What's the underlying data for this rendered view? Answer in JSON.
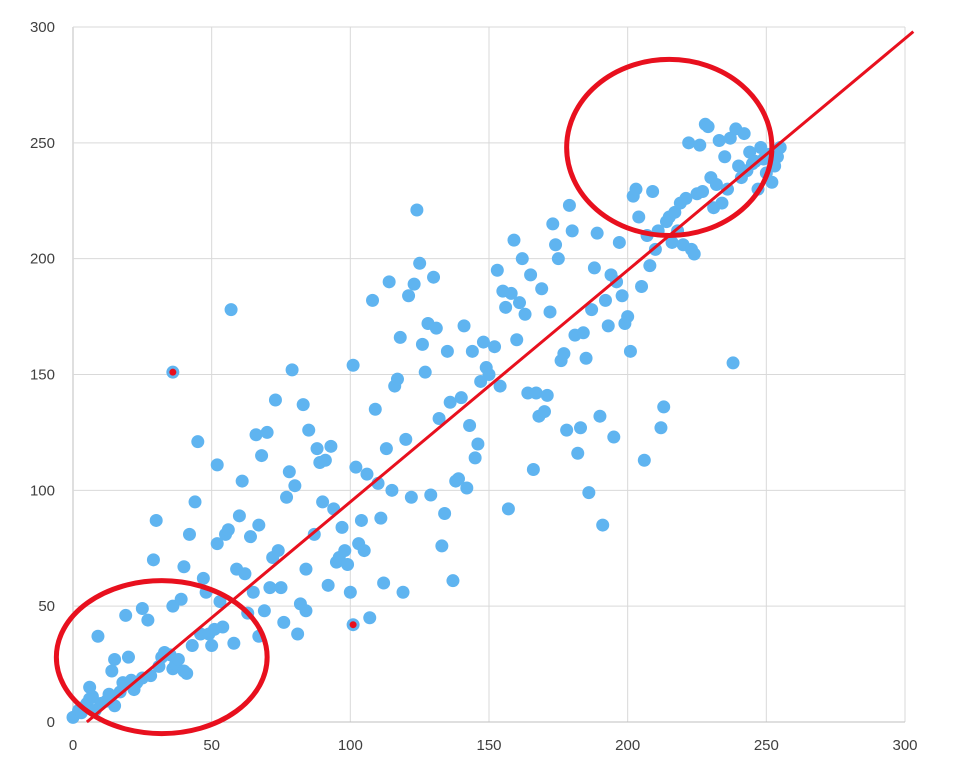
{
  "chart_data": {
    "type": "scatter",
    "title": "",
    "xlabel": "",
    "ylabel": "",
    "xlim": [
      0,
      300
    ],
    "ylim": [
      0,
      300
    ],
    "grid": true,
    "x_ticks": [
      "0",
      "50",
      "100",
      "150",
      "200",
      "250",
      "300"
    ],
    "y_ticks": [
      "0",
      "50",
      "100",
      "150",
      "200",
      "250",
      "300"
    ],
    "colors": {
      "points": "#5fb4f0",
      "highlight": "#e8101e",
      "fit_line": "#e8101e"
    },
    "fit_line": {
      "from": [
        5,
        0
      ],
      "to": [
        303,
        298
      ]
    },
    "annotations": [
      {
        "type": "ellipse",
        "center": [
          215,
          248
        ],
        "rx": 37,
        "ry": 38
      },
      {
        "type": "ellipse",
        "center": [
          32,
          28
        ],
        "rx": 38,
        "ry": 33
      }
    ],
    "highlighted_points": [
      [
        36,
        151
      ],
      [
        101,
        42
      ]
    ],
    "points": [
      [
        0,
        2
      ],
      [
        2,
        5
      ],
      [
        3,
        6
      ],
      [
        3,
        4
      ],
      [
        5,
        8
      ],
      [
        6,
        10
      ],
      [
        7,
        11
      ],
      [
        6,
        15
      ],
      [
        8,
        5
      ],
      [
        9,
        37
      ],
      [
        10,
        8
      ],
      [
        12,
        9
      ],
      [
        13,
        12
      ],
      [
        14,
        22
      ],
      [
        15,
        7
      ],
      [
        15,
        27
      ],
      [
        17,
        13
      ],
      [
        18,
        17
      ],
      [
        19,
        46
      ],
      [
        20,
        28
      ],
      [
        21,
        18
      ],
      [
        22,
        14
      ],
      [
        23,
        17
      ],
      [
        25,
        19
      ],
      [
        25,
        49
      ],
      [
        27,
        44
      ],
      [
        28,
        20
      ],
      [
        29,
        70
      ],
      [
        30,
        87
      ],
      [
        31,
        24
      ],
      [
        32,
        28
      ],
      [
        33,
        30
      ],
      [
        35,
        29
      ],
      [
        36,
        23
      ],
      [
        36,
        50
      ],
      [
        37,
        25
      ],
      [
        38,
        27
      ],
      [
        39,
        53
      ],
      [
        40,
        22
      ],
      [
        40,
        67
      ],
      [
        41,
        21
      ],
      [
        42,
        81
      ],
      [
        43,
        33
      ],
      [
        44,
        95
      ],
      [
        45,
        121
      ],
      [
        46,
        38
      ],
      [
        47,
        62
      ],
      [
        48,
        56
      ],
      [
        49,
        38
      ],
      [
        50,
        33
      ],
      [
        51,
        40
      ],
      [
        52,
        77
      ],
      [
        52,
        111
      ],
      [
        53,
        52
      ],
      [
        54,
        41
      ],
      [
        55,
        81
      ],
      [
        56,
        83
      ],
      [
        57,
        178
      ],
      [
        58,
        34
      ],
      [
        59,
        66
      ],
      [
        60,
        89
      ],
      [
        61,
        104
      ],
      [
        62,
        64
      ],
      [
        63,
        47
      ],
      [
        64,
        80
      ],
      [
        65,
        56
      ],
      [
        66,
        124
      ],
      [
        67,
        85
      ],
      [
        67,
        37
      ],
      [
        68,
        115
      ],
      [
        69,
        48
      ],
      [
        70,
        125
      ],
      [
        71,
        58
      ],
      [
        72,
        71
      ],
      [
        73,
        139
      ],
      [
        74,
        74
      ],
      [
        75,
        58
      ],
      [
        76,
        43
      ],
      [
        77,
        97
      ],
      [
        78,
        108
      ],
      [
        79,
        152
      ],
      [
        80,
        102
      ],
      [
        81,
        38
      ],
      [
        82,
        51
      ],
      [
        83,
        137
      ],
      [
        84,
        66
      ],
      [
        84,
        48
      ],
      [
        85,
        126
      ],
      [
        87,
        81
      ],
      [
        88,
        118
      ],
      [
        89,
        112
      ],
      [
        90,
        95
      ],
      [
        91,
        113
      ],
      [
        92,
        59
      ],
      [
        93,
        119
      ],
      [
        94,
        92
      ],
      [
        95,
        69
      ],
      [
        96,
        71
      ],
      [
        97,
        84
      ],
      [
        98,
        74
      ],
      [
        99,
        68
      ],
      [
        100,
        56
      ],
      [
        101,
        154
      ],
      [
        102,
        110
      ],
      [
        103,
        77
      ],
      [
        104,
        87
      ],
      [
        105,
        74
      ],
      [
        106,
        107
      ],
      [
        107,
        45
      ],
      [
        108,
        182
      ],
      [
        109,
        135
      ],
      [
        110,
        103
      ],
      [
        111,
        88
      ],
      [
        112,
        60
      ],
      [
        113,
        118
      ],
      [
        114,
        190
      ],
      [
        115,
        100
      ],
      [
        116,
        145
      ],
      [
        117,
        148
      ],
      [
        118,
        166
      ],
      [
        119,
        56
      ],
      [
        120,
        122
      ],
      [
        121,
        184
      ],
      [
        122,
        97
      ],
      [
        123,
        189
      ],
      [
        124,
        221
      ],
      [
        125,
        198
      ],
      [
        126,
        163
      ],
      [
        127,
        151
      ],
      [
        128,
        172
      ],
      [
        129,
        98
      ],
      [
        130,
        192
      ],
      [
        131,
        170
      ],
      [
        132,
        131
      ],
      [
        133,
        76
      ],
      [
        134,
        90
      ],
      [
        135,
        160
      ],
      [
        136,
        138
      ],
      [
        137,
        61
      ],
      [
        138,
        104
      ],
      [
        139,
        105
      ],
      [
        140,
        140
      ],
      [
        141,
        171
      ],
      [
        142,
        101
      ],
      [
        143,
        128
      ],
      [
        144,
        160
      ],
      [
        145,
        114
      ],
      [
        146,
        120
      ],
      [
        147,
        147
      ],
      [
        148,
        164
      ],
      [
        149,
        153
      ],
      [
        150,
        150
      ],
      [
        152,
        162
      ],
      [
        153,
        195
      ],
      [
        154,
        145
      ],
      [
        155,
        186
      ],
      [
        156,
        179
      ],
      [
        157,
        92
      ],
      [
        158,
        185
      ],
      [
        159,
        208
      ],
      [
        160,
        165
      ],
      [
        161,
        181
      ],
      [
        162,
        200
      ],
      [
        163,
        176
      ],
      [
        164,
        142
      ],
      [
        165,
        193
      ],
      [
        166,
        109
      ],
      [
        167,
        142
      ],
      [
        168,
        132
      ],
      [
        169,
        187
      ],
      [
        170,
        134
      ],
      [
        171,
        141
      ],
      [
        172,
        177
      ],
      [
        173,
        215
      ],
      [
        174,
        206
      ],
      [
        175,
        200
      ],
      [
        176,
        156
      ],
      [
        177,
        159
      ],
      [
        178,
        126
      ],
      [
        179,
        223
      ],
      [
        180,
        212
      ],
      [
        181,
        167
      ],
      [
        182,
        116
      ],
      [
        183,
        127
      ],
      [
        184,
        168
      ],
      [
        185,
        157
      ],
      [
        186,
        99
      ],
      [
        187,
        178
      ],
      [
        188,
        196
      ],
      [
        189,
        211
      ],
      [
        190,
        132
      ],
      [
        191,
        85
      ],
      [
        192,
        182
      ],
      [
        193,
        171
      ],
      [
        194,
        193
      ],
      [
        195,
        123
      ],
      [
        196,
        190
      ],
      [
        197,
        207
      ],
      [
        198,
        184
      ],
      [
        199,
        172
      ],
      [
        200,
        175
      ],
      [
        201,
        160
      ],
      [
        202,
        227
      ],
      [
        203,
        230
      ],
      [
        204,
        218
      ],
      [
        205,
        188
      ],
      [
        206,
        113
      ],
      [
        207,
        210
      ],
      [
        208,
        197
      ],
      [
        209,
        229
      ],
      [
        210,
        204
      ],
      [
        211,
        212
      ],
      [
        212,
        127
      ],
      [
        213,
        136
      ],
      [
        214,
        216
      ],
      [
        215,
        218
      ],
      [
        216,
        207
      ],
      [
        217,
        220
      ],
      [
        218,
        212
      ],
      [
        219,
        224
      ],
      [
        220,
        206
      ],
      [
        221,
        226
      ],
      [
        222,
        250
      ],
      [
        223,
        204
      ],
      [
        224,
        202
      ],
      [
        225,
        228
      ],
      [
        226,
        249
      ],
      [
        227,
        229
      ],
      [
        228,
        258
      ],
      [
        229,
        257
      ],
      [
        230,
        235
      ],
      [
        231,
        222
      ],
      [
        232,
        232
      ],
      [
        233,
        251
      ],
      [
        234,
        224
      ],
      [
        235,
        244
      ],
      [
        236,
        230
      ],
      [
        237,
        252
      ],
      [
        238,
        155
      ],
      [
        239,
        256
      ],
      [
        240,
        240
      ],
      [
        241,
        235
      ],
      [
        242,
        254
      ],
      [
        243,
        238
      ],
      [
        244,
        246
      ],
      [
        245,
        241
      ],
      [
        246,
        242
      ],
      [
        247,
        230
      ],
      [
        248,
        248
      ],
      [
        249,
        243
      ],
      [
        250,
        237
      ],
      [
        251,
        245
      ],
      [
        252,
        233
      ],
      [
        253,
        240
      ],
      [
        254,
        244
      ],
      [
        255,
        248
      ]
    ]
  }
}
